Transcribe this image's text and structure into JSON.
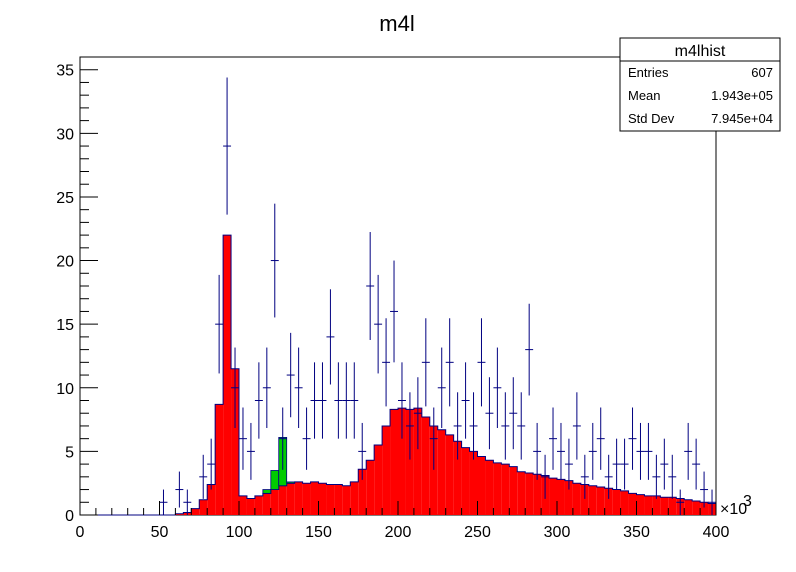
{
  "chart_data": {
    "type": "bar",
    "title": "m4l",
    "xlabel": "",
    "ylabel": "",
    "xlim": [
      0,
      400
    ],
    "ylim": [
      0,
      36
    ],
    "x_multiplier_label": "×10",
    "x_multiplier_exponent": "3",
    "x_ticks": [
      0,
      50,
      100,
      150,
      200,
      250,
      300,
      350,
      400
    ],
    "y_ticks": [
      0,
      5,
      10,
      15,
      20,
      25,
      30,
      35
    ],
    "bin_width": 5,
    "bin_lo": [
      0,
      5,
      10,
      15,
      20,
      25,
      30,
      35,
      40,
      45,
      50,
      55,
      60,
      65,
      70,
      75,
      80,
      85,
      90,
      95,
      100,
      105,
      110,
      115,
      120,
      125,
      130,
      135,
      140,
      145,
      150,
      155,
      160,
      165,
      170,
      175,
      180,
      185,
      190,
      195,
      200,
      205,
      210,
      215,
      220,
      225,
      230,
      235,
      240,
      245,
      250,
      255,
      260,
      265,
      270,
      275,
      280,
      285,
      290,
      295,
      300,
      305,
      310,
      315,
      320,
      325,
      330,
      335,
      340,
      345,
      350,
      355,
      360,
      365,
      370,
      375,
      380,
      385,
      390,
      395
    ],
    "series": [
      {
        "name": "",
        "color": "#ff0000",
        "values": [
          0,
          0,
          0,
          0,
          0,
          0,
          0,
          0,
          0,
          0,
          0,
          0,
          0.1,
          0.2,
          0.5,
          1.2,
          2.4,
          8.7,
          22.0,
          11.5,
          1.5,
          1.3,
          1.5,
          1.7,
          2.0,
          2.3,
          2.5,
          2.6,
          2.5,
          2.6,
          2.5,
          2.4,
          2.4,
          2.3,
          2.6,
          3.6,
          4.3,
          5.5,
          7.0,
          8.3,
          8.4,
          8.3,
          8.4,
          7.7,
          7.0,
          6.7,
          6.3,
          5.8,
          5.3,
          5.0,
          4.6,
          4.3,
          4.1,
          4.0,
          3.8,
          3.4,
          3.3,
          3.2,
          3.1,
          2.9,
          2.8,
          2.7,
          2.5,
          2.4,
          2.3,
          2.2,
          2.1,
          2.0,
          1.9,
          1.7,
          1.6,
          1.5,
          1.5,
          1.4,
          1.4,
          1.3,
          1.2,
          1.1,
          1.0,
          0.9
        ]
      },
      {
        "name": "",
        "color": "#00cc00",
        "values": [
          0,
          0,
          0,
          0,
          0,
          0,
          0,
          0,
          0,
          0,
          0,
          0,
          0,
          0,
          0,
          0,
          0,
          0,
          0,
          0,
          0,
          0,
          0,
          0.3,
          1.5,
          3.8,
          0.1,
          0,
          0,
          0,
          0,
          0,
          0,
          0,
          0,
          0,
          0,
          0,
          0,
          0,
          0,
          0,
          0,
          0,
          0,
          0,
          0,
          0,
          0,
          0,
          0,
          0,
          0,
          0,
          0,
          0,
          0,
          0,
          0,
          0,
          0,
          0,
          0,
          0,
          0,
          0,
          0,
          0,
          0,
          0,
          0,
          0,
          0,
          0,
          0,
          0,
          0,
          0,
          0,
          0
        ]
      },
      {
        "name": "",
        "color": "#000080",
        "type": "points_with_errors",
        "values": [
          0,
          0,
          0,
          0,
          0,
          0,
          0,
          0,
          0,
          0,
          1,
          0,
          2,
          1,
          0,
          3,
          4,
          15,
          29,
          10,
          6,
          5,
          9,
          10,
          20,
          6,
          11,
          10,
          6,
          9,
          9,
          14,
          9,
          9,
          9,
          5,
          18,
          15,
          12,
          16,
          9,
          7,
          8,
          12,
          6,
          10,
          12,
          7,
          9,
          7,
          12,
          8,
          10,
          7,
          8,
          7,
          13,
          5,
          3,
          6,
          5,
          4,
          7,
          3,
          5,
          6,
          3,
          4,
          4,
          6,
          5,
          5,
          3,
          4,
          3,
          1,
          5,
          4,
          2,
          1
        ]
      }
    ]
  },
  "stats_box": {
    "title": "m4lhist",
    "rows": [
      {
        "label": "Entries",
        "value": "607"
      },
      {
        "label": "Mean",
        "value": "1.943e+05"
      },
      {
        "label": "Std Dev",
        "value": "7.945e+04"
      }
    ]
  }
}
